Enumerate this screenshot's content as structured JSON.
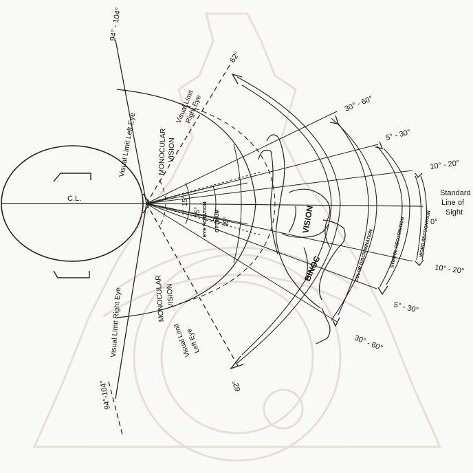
{
  "labels": {
    "top_angle": "94° - 104°",
    "bottom_angle": "94°-104°",
    "visual_limit_left_eye": "Visual Limit Left Eye",
    "visual_limit_right_eye": "Visual Limit Right Eye",
    "visual_limit_right_eye_upper": [
      "Visual Limit",
      "Right Eye"
    ],
    "visual_limit_left_eye_lower": [
      "Visual Limit",
      "Left Eye"
    ],
    "monocular_vision_upper": [
      "MONOCULAR",
      "VISION"
    ],
    "monocular_vision_lower": [
      "MONOCULAR",
      "VISION"
    ],
    "centre_line": "C.L.",
    "angle_62_top": "62°",
    "angle_62_bottom": "62°",
    "angle_30_60_top": "30° - 60°",
    "angle_5_30_top": "5° - 30°",
    "angle_10_20_top": "10° - 20°",
    "standard_line": [
      "Standard",
      "Line of",
      "Sight"
    ],
    "angle_0": "0°",
    "angle_10_20_bottom": "10° - 20°",
    "angle_5_30_bottom": "5° - 30°",
    "angle_30_60_bottom": "30° - 60°",
    "binocular_vision": [
      "VISION",
      "BINOC"
    ],
    "optimum_eye_rotation": [
      "OPTIMUM",
      "EYE ROTATION"
    ],
    "angle_15_a": "15°",
    "angle_15_b": "15°",
    "angle_15_c": "15°",
    "word_recognition": "WORD RECOGNITION",
    "symbol_recognition": "SYMBOL RECOGNITION",
    "color_discrimination": "COLOR DISCRIMINATION"
  },
  "colors": {
    "ink": "#222222",
    "watermark": "#e3dcd6",
    "paper": "#f9f9f7"
  }
}
